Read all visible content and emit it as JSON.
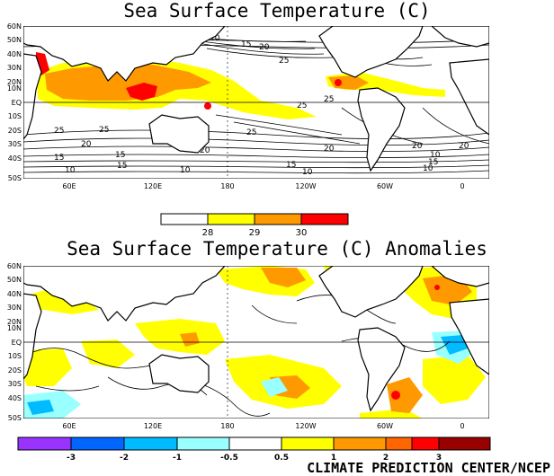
{
  "map1": {
    "title": "Sea Surface Temperature (C)",
    "lat_labels": [
      "60N",
      "50N",
      "40N",
      "30N",
      "20N",
      "10N",
      "EQ",
      "10S",
      "20S",
      "30S",
      "40S",
      "50S"
    ],
    "lon_labels": [
      "60E",
      "120E",
      "180",
      "120W",
      "60W",
      "0"
    ],
    "contour_labels": [
      "10",
      "15",
      "20",
      "25",
      "25",
      "25",
      "20",
      "15",
      "10",
      "25",
      "20",
      "15",
      "10",
      "25",
      "20",
      "15",
      "10",
      "10",
      "15",
      "20",
      "25",
      "20",
      "25",
      "15",
      "10",
      "20"
    ],
    "legend": {
      "colors": [
        "#ffffff",
        "#ffff00",
        "#ff9900",
        "#ff0000"
      ],
      "ticks": [
        "28",
        "29",
        "30"
      ]
    }
  },
  "map2": {
    "title": "Sea Surface Temperature (C) Anomalies",
    "lat_labels": [
      "60N",
      "50N",
      "40N",
      "30N",
      "20N",
      "10N",
      "EQ",
      "10S",
      "20S",
      "30S",
      "40S",
      "50S"
    ],
    "lon_labels": [
      "60E",
      "120E",
      "180",
      "120W",
      "60W",
      "0"
    ],
    "legend": {
      "colors": [
        "#9933ff",
        "#0066ff",
        "#00bbff",
        "#99ffff",
        "#ffffff",
        "#ffff00",
        "#ff9900",
        "#ff6600",
        "#ff0000",
        "#990000"
      ],
      "ticks": [
        "-3",
        "-2",
        "-1",
        "-0.5",
        "0.5",
        "1",
        "2",
        "3"
      ]
    }
  },
  "credit": "CLIMATE PREDICTION CENTER/NCEP",
  "colors": {
    "warm1": "#ffff00",
    "warm2": "#ff9900",
    "warm3": "#ff0000",
    "cool1": "#99ffff",
    "cool2": "#00bbff"
  }
}
